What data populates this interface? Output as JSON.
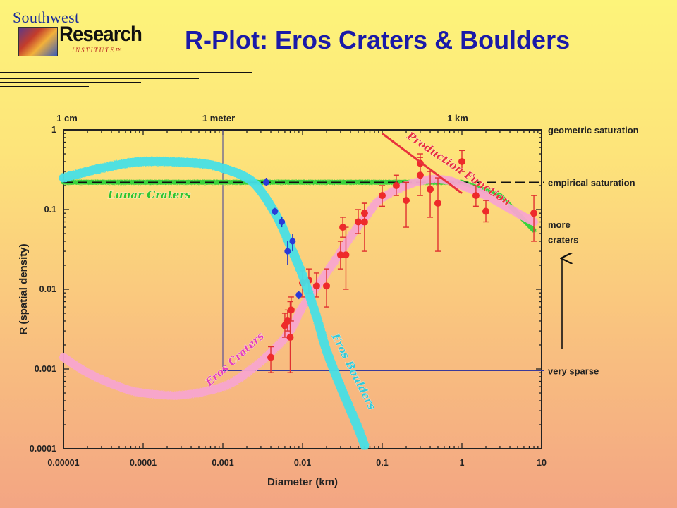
{
  "header": {
    "title": "R-Plot: Eros Craters & Boulders",
    "logo": {
      "top": "Southwest",
      "main": "Research",
      "sub": "INSTITUTE™"
    }
  },
  "chart_data": {
    "type": "scatter",
    "title": "",
    "xlabel": "Diameter (km)",
    "ylabel": "R (spatial density)",
    "x_scale": "log",
    "y_scale": "log",
    "xlim": [
      1e-05,
      10
    ],
    "ylim": [
      0.0001,
      1
    ],
    "x_ticks": [
      "0.00001",
      "0.0001",
      "0.001",
      "0.01",
      "0.1",
      "1",
      "10"
    ],
    "y_ticks": [
      "1",
      "0.1",
      "0.01",
      "0.001",
      "0.0001"
    ],
    "top_ticks": [
      {
        "label": "1 cm",
        "x": 1e-05
      },
      {
        "label": "1 meter",
        "x": 0.001
      },
      {
        "label": "1 km",
        "x": 1
      }
    ],
    "right_labels": [
      {
        "text": "geometric saturation",
        "y": 1
      },
      {
        "text": "empirical saturation",
        "y": 0.22
      },
      {
        "text": "more",
        "y": 0.065
      },
      {
        "text": "craters",
        "y": 0.042
      },
      {
        "text": "very sparse",
        "y": 0.00095
      }
    ],
    "series": [
      {
        "name": "Eros Craters",
        "color": "#f8a6cf",
        "curve": [
          [
            1e-05,
            0.0014
          ],
          [
            2e-05,
            0.0009
          ],
          [
            5e-05,
            0.0006
          ],
          [
            0.0001,
            0.0005
          ],
          [
            0.0003,
            0.00047
          ],
          [
            0.001,
            0.0006
          ],
          [
            0.002,
            0.0009
          ],
          [
            0.004,
            0.0016
          ],
          [
            0.007,
            0.003
          ],
          [
            0.01,
            0.006
          ],
          [
            0.02,
            0.016
          ],
          [
            0.04,
            0.045
          ],
          [
            0.07,
            0.095
          ],
          [
            0.1,
            0.14
          ],
          [
            0.2,
            0.2
          ],
          [
            0.4,
            0.24
          ],
          [
            0.7,
            0.23
          ],
          [
            1,
            0.2
          ],
          [
            2,
            0.15
          ],
          [
            5,
            0.09
          ],
          [
            8,
            0.07
          ]
        ]
      },
      {
        "name": "Eros Boulders",
        "color": "#46e0e6",
        "curve": [
          [
            1e-05,
            0.25
          ],
          [
            3e-05,
            0.33
          ],
          [
            0.0001,
            0.4
          ],
          [
            0.0005,
            0.38
          ],
          [
            0.001,
            0.33
          ],
          [
            0.002,
            0.25
          ],
          [
            0.003,
            0.17
          ],
          [
            0.005,
            0.075
          ],
          [
            0.007,
            0.035
          ],
          [
            0.01,
            0.015
          ],
          [
            0.015,
            0.0045
          ],
          [
            0.02,
            0.0017
          ],
          [
            0.03,
            0.0006
          ],
          [
            0.05,
            0.00018
          ],
          [
            0.06,
            0.00011
          ]
        ]
      },
      {
        "name": "Lunar Craters",
        "color": "#3ad23a",
        "curve": [
          [
            1e-05,
            0.22
          ],
          [
            1,
            0.22
          ],
          [
            3,
            0.15
          ],
          [
            8,
            0.055
          ]
        ]
      },
      {
        "name": "Production Function",
        "color": "#e8323c",
        "curve": [
          [
            0.1,
            0.9
          ],
          [
            1,
            0.16
          ]
        ]
      }
    ],
    "crater_points": [
      {
        "x": 0.004,
        "y": 0.0014,
        "lo": 0.0009,
        "hi": 0.0019
      },
      {
        "x": 0.006,
        "y": 0.0035,
        "lo": 0.0025,
        "hi": 0.005
      },
      {
        "x": 0.0065,
        "y": 0.004,
        "lo": 0.003,
        "hi": 0.0055
      },
      {
        "x": 0.007,
        "y": 0.0025,
        "lo": 0.0009,
        "hi": 0.007
      },
      {
        "x": 0.0072,
        "y": 0.0055,
        "lo": 0.004,
        "hi": 0.008
      },
      {
        "x": 0.01,
        "y": 0.012,
        "lo": 0.008,
        "hi": 0.017
      },
      {
        "x": 0.012,
        "y": 0.013,
        "lo": 0.009,
        "hi": 0.018
      },
      {
        "x": 0.015,
        "y": 0.011,
        "lo": 0.008,
        "hi": 0.016
      },
      {
        "x": 0.02,
        "y": 0.011,
        "lo": 0.006,
        "hi": 0.018
      },
      {
        "x": 0.03,
        "y": 0.027,
        "lo": 0.018,
        "hi": 0.04
      },
      {
        "x": 0.032,
        "y": 0.06,
        "lo": 0.045,
        "hi": 0.08
      },
      {
        "x": 0.035,
        "y": 0.027,
        "lo": 0.01,
        "hi": 0.06
      },
      {
        "x": 0.05,
        "y": 0.07,
        "lo": 0.05,
        "hi": 0.1
      },
      {
        "x": 0.06,
        "y": 0.09,
        "lo": 0.065,
        "hi": 0.12
      },
      {
        "x": 0.06,
        "y": 0.07,
        "lo": 0.03,
        "hi": 0.12
      },
      {
        "x": 0.1,
        "y": 0.15,
        "lo": 0.11,
        "hi": 0.2
      },
      {
        "x": 0.15,
        "y": 0.2,
        "lo": 0.15,
        "hi": 0.27
      },
      {
        "x": 0.2,
        "y": 0.13,
        "lo": 0.06,
        "hi": 0.22
      },
      {
        "x": 0.3,
        "y": 0.38,
        "lo": 0.28,
        "hi": 0.5
      },
      {
        "x": 0.3,
        "y": 0.27,
        "lo": 0.15,
        "hi": 0.45
      },
      {
        "x": 0.4,
        "y": 0.18,
        "lo": 0.08,
        "hi": 0.3
      },
      {
        "x": 0.5,
        "y": 0.12,
        "lo": 0.03,
        "hi": 0.25
      },
      {
        "x": 1,
        "y": 0.4,
        "lo": 0.3,
        "hi": 0.55
      },
      {
        "x": 1.5,
        "y": 0.15,
        "lo": 0.11,
        "hi": 0.2
      },
      {
        "x": 2,
        "y": 0.095,
        "lo": 0.07,
        "hi": 0.13
      },
      {
        "x": 8,
        "y": 0.09,
        "lo": 0.04,
        "hi": 0.15
      }
    ],
    "boulder_points": [
      {
        "x": 0.0045,
        "y": 0.095,
        "lo": 0.085,
        "hi": 0.105
      },
      {
        "x": 0.0055,
        "y": 0.07,
        "lo": 0.06,
        "hi": 0.08
      },
      {
        "x": 0.0065,
        "y": 0.03,
        "lo": 0.02,
        "hi": 0.04
      },
      {
        "x": 0.0075,
        "y": 0.04,
        "lo": 0.03,
        "hi": 0.05
      },
      {
        "x": 0.009,
        "y": 0.0085,
        "lo": 0.0075,
        "hi": 0.0095
      },
      {
        "x": 0.0035,
        "y": 0.22,
        "lo": 0.2,
        "hi": 0.25
      }
    ],
    "reference_lines": [
      {
        "kind": "vertical",
        "x": 0.001,
        "from": 0.00095,
        "to": 1
      },
      {
        "kind": "horizontal",
        "y": 0.00095,
        "from": 0.001,
        "to": 10
      },
      {
        "kind": "dashed-horizontal",
        "y": 0.22,
        "from": 1e-05,
        "to": 10
      }
    ]
  }
}
